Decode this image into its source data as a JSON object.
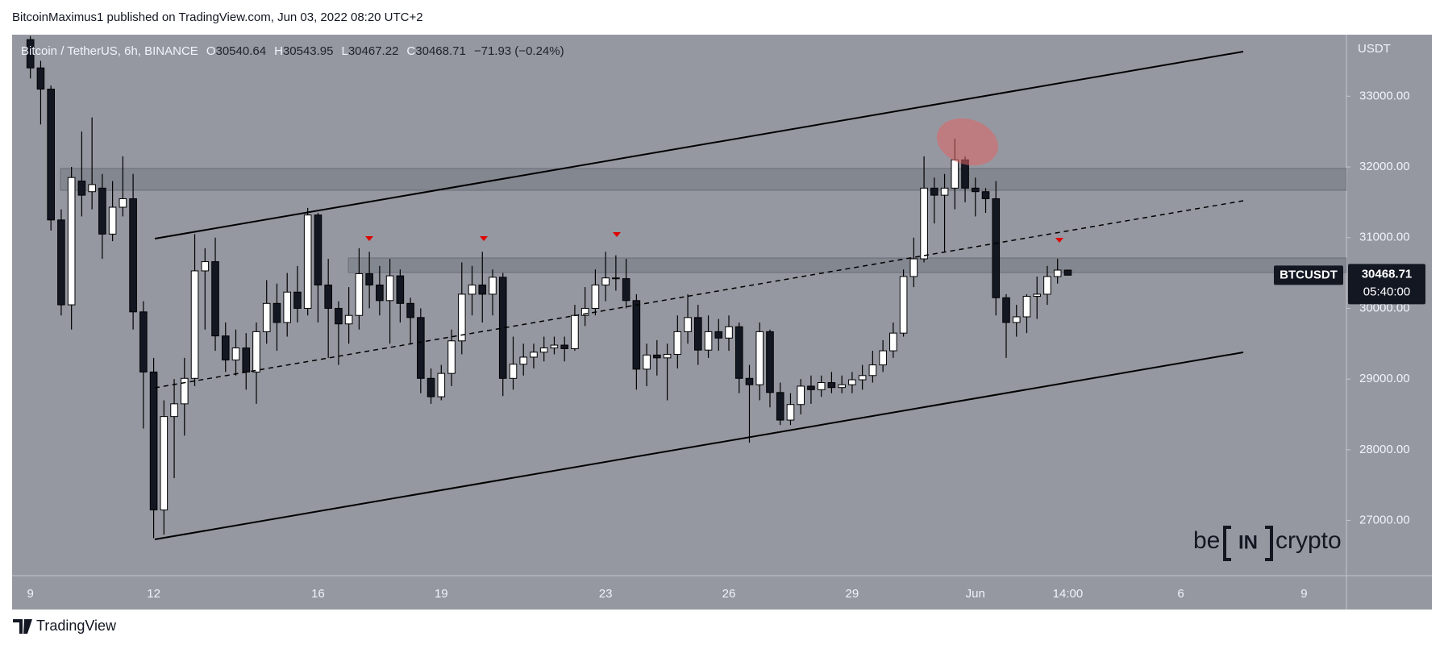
{
  "header": "BitcoinMaximus1 published on TradingView.com, Jun 03, 2022 08:20 UTC+2",
  "footer": "TradingView",
  "watermark": {
    "left": "be",
    "boxed": "IN",
    "right": "crypto"
  },
  "chart_data": {
    "type": "candlestick",
    "title": "Bitcoin / TetherUS, 6h, BINANCE",
    "ohlc_labels": [
      "O",
      "H",
      "L",
      "C"
    ],
    "change": "−71.93 (−0.24%)",
    "y_unit": "USDT",
    "symbol": "BTCUSDT",
    "countdown": "05:40:00",
    "up_color": "#ffffff",
    "down_color": "#131722",
    "grid": false,
    "ylim": [
      26220,
      33870
    ],
    "yticks": [
      {
        "value": 27000,
        "label": "27000.00"
      },
      {
        "value": 28000,
        "label": "28000.00"
      },
      {
        "value": 29000,
        "label": "29000.00"
      },
      {
        "value": 30000,
        "label": "30000.00"
      },
      {
        "value": 31000,
        "label": "31000.00"
      },
      {
        "value": 32000,
        "label": "32000.00"
      },
      {
        "value": 33000,
        "label": "33000.00"
      }
    ],
    "categories": [
      "9",
      null,
      null,
      null,
      null,
      null,
      null,
      null,
      null,
      null,
      null,
      null,
      "12",
      null,
      null,
      null,
      null,
      null,
      null,
      null,
      null,
      null,
      null,
      null,
      null,
      null,
      null,
      null,
      "16",
      null,
      null,
      null,
      null,
      null,
      null,
      null,
      null,
      null,
      null,
      null,
      "19",
      null,
      null,
      null,
      null,
      null,
      null,
      null,
      null,
      null,
      null,
      null,
      null,
      null,
      null,
      null,
      "23",
      null,
      null,
      null,
      null,
      null,
      null,
      null,
      null,
      null,
      null,
      null,
      "26",
      null,
      null,
      null,
      null,
      null,
      null,
      null,
      null,
      null,
      null,
      null,
      "29",
      null,
      null,
      null,
      null,
      null,
      null,
      null,
      null,
      null,
      null,
      null,
      "Jun",
      null,
      null,
      null,
      null,
      null,
      null,
      null,
      null,
      "14:00",
      null,
      null,
      null,
      null,
      null,
      null,
      null,
      null,
      null,
      null,
      "6",
      null,
      null,
      null,
      null,
      null,
      null,
      null,
      null,
      null,
      null,
      null,
      "9",
      null,
      null,
      null
    ],
    "open": [
      33800,
      33400,
      33100,
      31250,
      30050,
      31800,
      31650,
      31700,
      31050,
      31430,
      31550,
      29950,
      29100,
      27150,
      28470,
      28650,
      29010,
      30530,
      30660,
      29610,
      29270,
      29440,
      29100,
      29670,
      30070,
      29800,
      30230,
      30000,
      31320,
      30330,
      30000,
      29780,
      29900,
      30490,
      30330,
      30110,
      30460,
      30070,
      29870,
      29010,
      28750,
      29080,
      29540,
      30200,
      30330,
      30200,
      30440,
      29010,
      29210,
      29310,
      29380,
      29440,
      29480,
      29430,
      29900,
      30000,
      30330,
      30430,
      30420,
      30110,
      29140,
      29340,
      29300,
      29350,
      29670,
      29870,
      29410,
      29670,
      29580,
      29740,
      29010,
      28920,
      29670,
      28810,
      28420,
      28640,
      28900,
      28850,
      28950,
      28880,
      28920,
      28990,
      29050,
      29200,
      29400,
      29650,
      30450,
      30700,
      31700,
      31600,
      31700,
      32100,
      31700,
      31650,
      31550,
      30150,
      29800,
      29880,
      30170,
      30200,
      30450,
      30540.64,
      null,
      null,
      null,
      null,
      null,
      null,
      null,
      null,
      null,
      null,
      null,
      null,
      null,
      null,
      null,
      null,
      null,
      null,
      null,
      null,
      null,
      null,
      null,
      null,
      null,
      null
    ],
    "high": [
      33850,
      33500,
      33150,
      31400,
      32000,
      32500,
      32700,
      31900,
      31800,
      32150,
      31900,
      30100,
      29300,
      28700,
      29000,
      29300,
      31050,
      30850,
      31000,
      29800,
      29700,
      29650,
      29800,
      30400,
      30350,
      30500,
      30600,
      31420,
      31350,
      30700,
      30100,
      30300,
      30850,
      30800,
      30600,
      30700,
      30550,
      30150,
      30000,
      29150,
      29200,
      29700,
      30650,
      30600,
      30800,
      30550,
      30500,
      29600,
      29500,
      29500,
      29600,
      29600,
      29600,
      30050,
      30300,
      30550,
      30800,
      30750,
      30700,
      30200,
      29500,
      29550,
      29500,
      29900,
      30200,
      30050,
      29900,
      29850,
      29900,
      29800,
      29200,
      29800,
      29700,
      28950,
      28800,
      29000,
      29050,
      29050,
      29100,
      29050,
      29100,
      29200,
      29400,
      29550,
      29800,
      30550,
      31000,
      32150,
      31850,
      31900,
      32400,
      32150,
      31850,
      31700,
      31800,
      30200,
      30050,
      30200,
      30450,
      30600,
      30700,
      30543.95,
      null,
      null,
      null,
      null,
      null,
      null,
      null,
      null,
      null,
      null,
      null,
      null,
      null,
      null,
      null,
      null,
      null,
      null,
      null,
      null,
      null,
      null,
      null,
      null,
      null,
      null
    ],
    "low": [
      33250,
      32600,
      31100,
      29900,
      29700,
      31300,
      31400,
      30700,
      30950,
      31300,
      29700,
      28300,
      26750,
      26800,
      27600,
      28200,
      28900,
      29700,
      29400,
      29100,
      29050,
      28850,
      28650,
      29500,
      29400,
      29600,
      29800,
      29900,
      29800,
      29300,
      29200,
      29500,
      29700,
      30000,
      29900,
      29500,
      29800,
      29500,
      28800,
      28650,
      28700,
      28900,
      29350,
      29900,
      29800,
      29900,
      28760,
      28850,
      29050,
      29150,
      29250,
      29350,
      29250,
      29400,
      29750,
      29900,
      30100,
      30250,
      30000,
      28850,
      28900,
      29050,
      28700,
      29150,
      29500,
      29200,
      29300,
      29400,
      29400,
      28800,
      28100,
      28700,
      28600,
      28350,
      28350,
      28500,
      28650,
      28750,
      28800,
      28800,
      28800,
      28850,
      28950,
      29100,
      29300,
      29600,
      30300,
      30650,
      31200,
      30800,
      31400,
      31500,
      31300,
      31350,
      29900,
      29300,
      29600,
      29650,
      29850,
      30050,
      30350,
      30467.22,
      null,
      null,
      null,
      null,
      null,
      null,
      null,
      null,
      null,
      null,
      null,
      null,
      null,
      null,
      null,
      null,
      null,
      null,
      null,
      null,
      null,
      null,
      null,
      null,
      null,
      null
    ],
    "close": [
      33400,
      33100,
      31250,
      30050,
      31850,
      31600,
      31750,
      31050,
      31430,
      31550,
      29950,
      29100,
      27150,
      28470,
      28650,
      29010,
      30530,
      30660,
      29610,
      29270,
      29440,
      29100,
      29670,
      30070,
      29800,
      30230,
      30000,
      31320,
      30330,
      30000,
      29780,
      29900,
      30490,
      30330,
      30110,
      30460,
      30070,
      29870,
      29010,
      28750,
      29080,
      29540,
      30200,
      30330,
      30200,
      30440,
      29010,
      29210,
      29310,
      29380,
      29440,
      29480,
      29430,
      29900,
      30000,
      30330,
      30430,
      30420,
      30110,
      29140,
      29340,
      29300,
      29350,
      29670,
      29870,
      29410,
      29670,
      29580,
      29740,
      29010,
      28920,
      29670,
      28810,
      28420,
      28640,
      28900,
      28850,
      28950,
      28880,
      28920,
      28990,
      29050,
      29200,
      29400,
      29650,
      30450,
      30700,
      31700,
      31600,
      31700,
      32100,
      31700,
      31650,
      31550,
      30150,
      29800,
      29880,
      30170,
      30200,
      30450,
      30540.64,
      30468.71,
      null,
      null,
      null,
      null,
      null,
      null,
      null,
      null,
      null,
      null,
      null,
      null,
      null,
      null,
      null,
      null,
      null,
      null,
      null,
      null,
      null,
      null,
      null,
      null,
      null,
      null
    ]
  }
}
